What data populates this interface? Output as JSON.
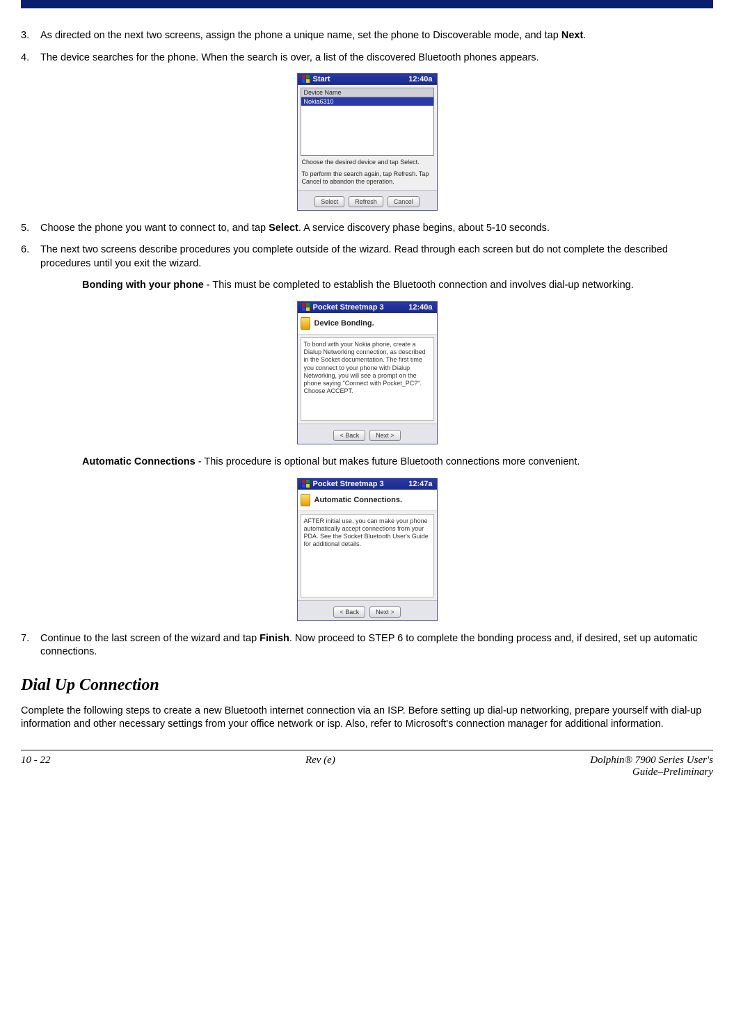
{
  "colors": {
    "topbar": "#0a1e6e",
    "pda_titlebar_start": "#2a3aa8",
    "pda_titlebar_end": "#1a2a88",
    "pda_body_bg": "#efefef",
    "pda_btn_border": "#888888"
  },
  "steps": {
    "s3": {
      "num": "3.",
      "text_a": "As directed on the next two screens, assign the phone a unique name, set the phone to Discoverable mode, and tap ",
      "bold": "Next",
      "text_b": "."
    },
    "s4": {
      "num": "4.",
      "text": "The device searches for the phone. When the search is over, a list of the discovered Bluetooth phones appears."
    },
    "s5": {
      "num": "5.",
      "text_a": "Choose the phone you want to connect to, and tap ",
      "bold": "Select",
      "text_b": ". A service discovery phase begins, about 5-10 seconds."
    },
    "s6": {
      "num": "6.",
      "text": "The next two screens describe procedures you complete outside of the wizard. Read through each screen but do not complete the described procedures until you exit the wizard."
    },
    "s7": {
      "num": "7.",
      "text_a": "Continue to the last screen of the wizard and tap ",
      "bold": "Finish",
      "text_b": ". Now proceed to STEP 6 to complete the bonding process and, if desired, set up automatic connections."
    }
  },
  "sub_bonding": {
    "bold": "Bonding with your phone",
    "text": " - This must be completed to establish the Bluetooth connection and involves dial-up networking."
  },
  "sub_auto": {
    "bold": "Automatic Connections",
    "text": " - This procedure is optional but makes future Bluetooth connections more convenient."
  },
  "section": {
    "heading": "Dial Up Connection",
    "para": "Complete the following steps to create a new Bluetooth internet connection via an ISP. Before setting up dial-up networking, prepare yourself with dial-up information and other necessary settings from your office network or isp. Also, refer to Microsoft's connection manager for additional information."
  },
  "pda1": {
    "title_left": "Start",
    "title_right": "12:40a",
    "list_header": "Device Name",
    "list_item": "Nokia6310",
    "caption1": "Choose the desired device and tap Select.",
    "caption2": "To perform the search again, tap Refresh. Tap Cancel to abandon the operation.",
    "btn1": "Select",
    "btn2": "Refresh",
    "btn3": "Cancel"
  },
  "pda2": {
    "title_left": "Pocket Streetmap 3",
    "title_right": "12:40a",
    "heading": "Device Bonding.",
    "body": "To bond with your Nokia phone, create a Dialup Networking connection, as described in the Socket documentation. The first time you connect to your phone with Dialup Networking, you will see a prompt on the phone saying \"Connect with Pocket_PC?\". Choose ACCEPT.",
    "btn_back": "< Back",
    "btn_next": "Next >"
  },
  "pda3": {
    "title_left": "Pocket Streetmap 3",
    "title_right": "12:47a",
    "heading": "Automatic Connections.",
    "body": "AFTER initial use, you can make your phone automatically accept connections from your PDA. See the Socket Bluetooth User's Guide for additional details.",
    "btn_back": "< Back",
    "btn_next": "Next >"
  },
  "footer": {
    "left": "10 - 22",
    "center": "Rev (e)",
    "right1": "Dolphin® 7900 Series User's",
    "right2": "Guide–Preliminary"
  }
}
